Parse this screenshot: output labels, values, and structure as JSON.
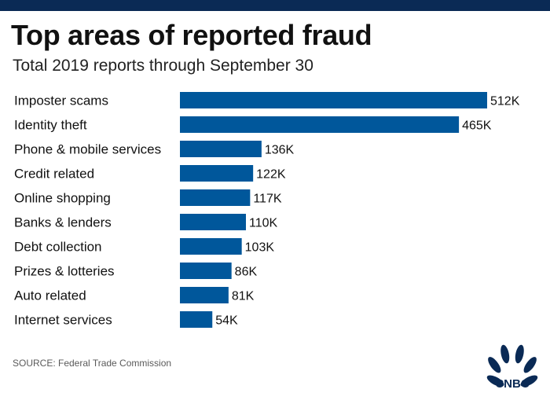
{
  "title": "Top areas of reported fraud",
  "subtitle": "Total 2019 reports through September 30",
  "source": "SOURCE: Federal Trade Commission",
  "logo_text": "CNBC",
  "colors": {
    "bar": "#00579b",
    "top_band": "#0a2a55"
  },
  "chart_data": {
    "type": "bar",
    "orientation": "horizontal",
    "title": "Top areas of reported fraud",
    "subtitle": "Total 2019 reports through September 30",
    "xlabel": "",
    "ylabel": "",
    "grid": false,
    "categories": [
      "Imposter scams",
      "Identity theft",
      "Phone & mobile services",
      "Credit related",
      "Online shopping",
      "Banks & lenders",
      "Debt collection",
      "Prizes & lotteries",
      "Auto related",
      "Internet services"
    ],
    "values": [
      512,
      465,
      136,
      122,
      117,
      110,
      103,
      86,
      81,
      54
    ],
    "value_labels": [
      "512K",
      "465K",
      "136K",
      "122K",
      "117K",
      "110K",
      "103K",
      "86K",
      "81K",
      "54K"
    ],
    "unit": "thousand reports"
  }
}
